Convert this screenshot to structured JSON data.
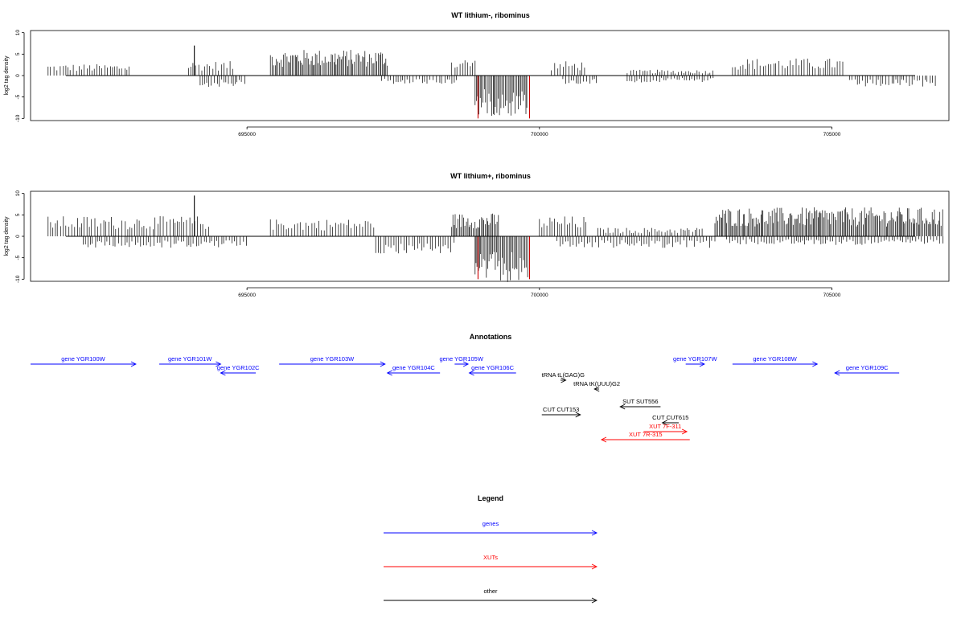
{
  "colors": {
    "bar_pos": "#000000",
    "bar_neg": "#000000",
    "bar_peak": "#cc0000",
    "genes": "#0000ff",
    "xuts": "#ff0000",
    "other": "#000000"
  },
  "chart_data": [
    {
      "type": "bar",
      "title": "WT lithium-, ribominus",
      "ylabel": "log2 tag density",
      "xlim": [
        691300,
        707000
      ],
      "ylim": [
        -10.5,
        10.5
      ],
      "yticks": [
        "10",
        "5",
        "0",
        "-5",
        "-10"
      ],
      "xticks": [
        "695000",
        "700000",
        "705000"
      ],
      "grid": false,
      "segments": [
        {
          "strand": "+",
          "x": [
            691600,
            693000
          ],
          "level": 2.0
        },
        {
          "strand": "+",
          "x": [
            694000,
            694800
          ],
          "level": 2.5
        },
        {
          "strand": "+",
          "x": [
            695400,
            697400
          ],
          "level": 4.5
        },
        {
          "strand": "+",
          "x": [
            698500,
            698900
          ],
          "level": 3.0
        },
        {
          "strand": "+",
          "x": [
            700200,
            700800
          ],
          "level": 2.5
        },
        {
          "strand": "+",
          "x": [
            701500,
            703000
          ],
          "level": 1.0
        },
        {
          "strand": "+",
          "x": [
            703300,
            705200
          ],
          "level": 3.0
        },
        {
          "strand": "-",
          "x": [
            694200,
            695000
          ],
          "level": -2.0
        },
        {
          "strand": "-",
          "x": [
            697300,
            698600
          ],
          "level": -1.5
        },
        {
          "strand": "-",
          "x": [
            698900,
            699800
          ],
          "level": -7.0
        },
        {
          "strand": "-",
          "x": [
            700400,
            701000
          ],
          "level": -1.5
        },
        {
          "strand": "-",
          "x": [
            701500,
            703000
          ],
          "level": -1.2
        },
        {
          "strand": "-",
          "x": [
            705300,
            706800
          ],
          "level": -2.0
        }
      ],
      "peaks": [
        {
          "x": 694100,
          "value": 7.0
        },
        {
          "x": 698950,
          "value": -10.0
        },
        {
          "x": 699830,
          "value": -10.0
        }
      ]
    },
    {
      "type": "bar",
      "title": "WT lithium+, ribominus",
      "ylabel": "log2 tag density",
      "xlim": [
        691300,
        707000
      ],
      "ylim": [
        -10.5,
        10.5
      ],
      "yticks": [
        "10",
        "5",
        "0",
        "-5",
        "-10"
      ],
      "xticks": [
        "695000",
        "700000",
        "705000"
      ],
      "grid": false,
      "segments": [
        {
          "strand": "+",
          "x": [
            691600,
            694400
          ],
          "level": 3.5
        },
        {
          "strand": "+",
          "x": [
            695400,
            697200
          ],
          "level": 3.0
        },
        {
          "strand": "+",
          "x": [
            698500,
            699300
          ],
          "level": 4.0
        },
        {
          "strand": "+",
          "x": [
            700000,
            700800
          ],
          "level": 3.5
        },
        {
          "strand": "+",
          "x": [
            701000,
            702800
          ],
          "level": 1.5
        },
        {
          "strand": "+",
          "x": [
            703000,
            706900
          ],
          "level": 5.0
        },
        {
          "strand": "-",
          "x": [
            692200,
            695000
          ],
          "level": -2.0
        },
        {
          "strand": "-",
          "x": [
            697200,
            698600
          ],
          "level": -3.0
        },
        {
          "strand": "-",
          "x": [
            698900,
            699800
          ],
          "level": -8.0
        },
        {
          "strand": "-",
          "x": [
            700300,
            703000
          ],
          "level": -2.0
        },
        {
          "strand": "-",
          "x": [
            703200,
            706900
          ],
          "level": -1.5
        }
      ],
      "peaks": [
        {
          "x": 694100,
          "value": 9.5
        },
        {
          "x": 698950,
          "value": -10.0
        },
        {
          "x": 699830,
          "value": -10.0
        }
      ]
    }
  ],
  "annotations": {
    "title": "Annotations",
    "features": [
      {
        "label": "gene YGR100W",
        "type": "genes",
        "strand": "+",
        "start": 691300,
        "end": 693100,
        "row": 0
      },
      {
        "label": "gene YGR101W",
        "type": "genes",
        "strand": "+",
        "start": 693500,
        "end": 694550,
        "row": 0
      },
      {
        "label": "gene YGR102C",
        "type": "genes",
        "strand": "-",
        "start": 694550,
        "end": 695150,
        "row": 1
      },
      {
        "label": "gene YGR103W",
        "type": "genes",
        "strand": "+",
        "start": 695550,
        "end": 697360,
        "row": 0
      },
      {
        "label": "gene YGR104C",
        "type": "genes",
        "strand": "-",
        "start": 697400,
        "end": 698300,
        "row": 1
      },
      {
        "label": "gene YGR105W",
        "type": "genes",
        "strand": "+",
        "start": 698550,
        "end": 698780,
        "row": 0
      },
      {
        "label": "gene YGR106C",
        "type": "genes",
        "strand": "-",
        "start": 698800,
        "end": 699600,
        "row": 1
      },
      {
        "label": "gene YGR107W",
        "type": "genes",
        "strand": "+",
        "start": 702500,
        "end": 702820,
        "row": 0
      },
      {
        "label": "gene YGR108W",
        "type": "genes",
        "strand": "+",
        "start": 703300,
        "end": 704750,
        "row": 0
      },
      {
        "label": "gene YGR109C",
        "type": "genes",
        "strand": "-",
        "start": 705050,
        "end": 706150,
        "row": 1
      },
      {
        "label": "tRNA tL(GAG)G",
        "type": "other",
        "strand": "+",
        "start": 700360,
        "end": 700450,
        "row": 2
      },
      {
        "label": "tRNA tK(UUU)G2",
        "type": "other",
        "strand": "-",
        "start": 700940,
        "end": 701020,
        "row": 3
      },
      {
        "label": "SUT SUT556",
        "type": "other",
        "strand": "-",
        "start": 701380,
        "end": 702070,
        "row": 4
      },
      {
        "label": "CUT CUT153",
        "type": "other",
        "strand": "+",
        "start": 700040,
        "end": 700700,
        "row": 5
      },
      {
        "label": "CUT CUT615",
        "type": "other",
        "strand": "-",
        "start": 702100,
        "end": 702380,
        "row": 6
      },
      {
        "label": "XUT 7F-311",
        "type": "xuts",
        "strand": "+",
        "start": 701780,
        "end": 702520,
        "row": 7
      },
      {
        "label": "XUT 7R-315",
        "type": "xuts",
        "strand": "-",
        "start": 701060,
        "end": 702570,
        "row": 8
      }
    ]
  },
  "legend": {
    "title": "Legend",
    "items": [
      {
        "label": "genes",
        "type": "genes"
      },
      {
        "label": "XUTs",
        "type": "xuts"
      },
      {
        "label": "other",
        "type": "other"
      }
    ]
  }
}
